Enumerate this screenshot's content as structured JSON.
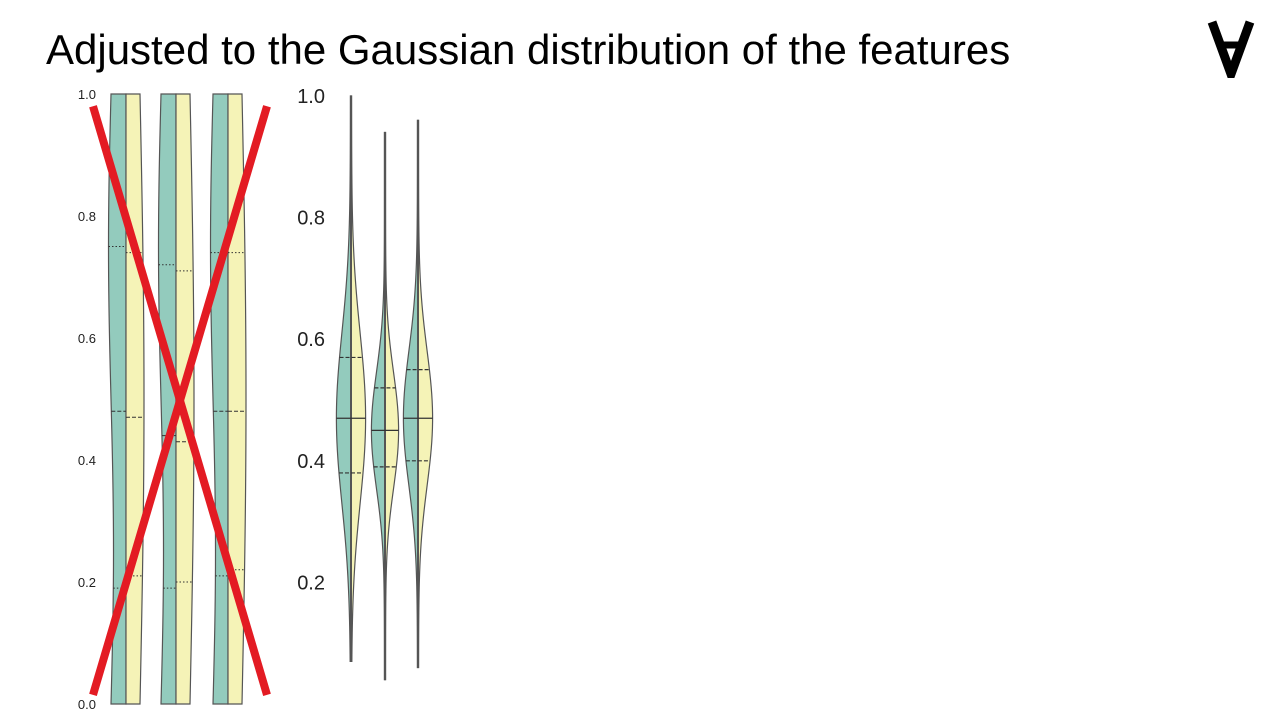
{
  "slide": {
    "title": "Adjusted to the Gaussian distribution of the features",
    "logo_icon": "for-all-symbol-icon"
  },
  "colors": {
    "teal": "#93cbbd",
    "cream": "#f5f3b7",
    "outline": "#555555",
    "cross": "#e31b23"
  },
  "chart_data": [
    {
      "type": "violin",
      "split": true,
      "crossed_out": true,
      "ylim": [
        0.0,
        1.0
      ],
      "yticks": [
        "0.0",
        "0.2",
        "0.4",
        "0.6",
        "0.8",
        "1.0"
      ],
      "violins": [
        {
          "left": {
            "q1": 0.19,
            "median": 0.48,
            "q3": 0.75
          },
          "right": {
            "q1": 0.21,
            "median": 0.47,
            "q3": 0.74
          }
        },
        {
          "left": {
            "q1": 0.19,
            "median": 0.44,
            "q3": 0.72
          },
          "right": {
            "q1": 0.2,
            "median": 0.43,
            "q3": 0.71
          }
        },
        {
          "left": {
            "q1": 0.21,
            "median": 0.48,
            "q3": 0.74
          },
          "right": {
            "q1": 0.22,
            "median": 0.48,
            "q3": 0.74
          }
        }
      ]
    },
    {
      "type": "violin",
      "split": true,
      "crossed_out": false,
      "ylim": [
        0.0,
        1.0
      ],
      "yticks": [
        "0.2",
        "0.4",
        "0.6",
        "0.8",
        "1.0"
      ],
      "violins": [
        {
          "min": 0.07,
          "max": 1.0,
          "q1": 0.38,
          "median": 0.47,
          "q3": 0.57
        },
        {
          "min": 0.04,
          "max": 0.94,
          "q1": 0.39,
          "median": 0.45,
          "q3": 0.52
        },
        {
          "min": 0.06,
          "max": 0.96,
          "q1": 0.4,
          "median": 0.47,
          "q3": 0.55
        }
      ]
    }
  ]
}
